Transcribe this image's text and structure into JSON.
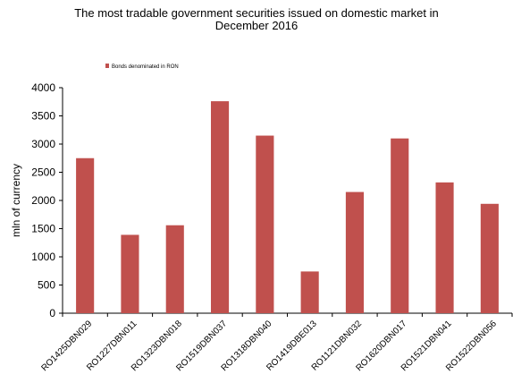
{
  "chart_data": {
    "type": "bar",
    "title_lines": [
      "The most  tradable government securities issued on domestic market in",
      "December 2016"
    ],
    "ylabel": "mln of currency",
    "xlabel": "",
    "ylim": [
      0,
      4000
    ],
    "yticks": [
      0,
      500,
      1000,
      1500,
      2000,
      2500,
      3000,
      3500,
      4000
    ],
    "categories": [
      "RO1425DBN029",
      "RO1227DBN011",
      "RO1323DBN018",
      "RO1519DBN037",
      "RO1318DBN040",
      "RO1419DBE013",
      "RO1121DBN032",
      "RO1620DBN017",
      "RO1521DBN041",
      "RO1522DBN056"
    ],
    "series": [
      {
        "name": "Bonds denominated in RON",
        "color": "#c0504d",
        "values": [
          2750,
          1390,
          1560,
          3760,
          3150,
          740,
          2150,
          3100,
          2320,
          1940
        ]
      }
    ],
    "grid": false,
    "legend_position": "top-left"
  }
}
